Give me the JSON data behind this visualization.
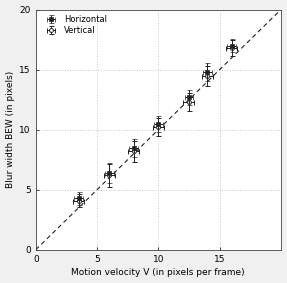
{
  "title": "",
  "xlabel": "Motion velocity V (in pixels per frame)",
  "ylabel": "Blur width BEW (in pixels)",
  "xlim": [
    0,
    20
  ],
  "ylim": [
    0,
    20
  ],
  "xticks": [
    0,
    5,
    10,
    15
  ],
  "yticks": [
    0,
    5,
    10,
    15,
    20
  ],
  "dashed_line": {
    "x": [
      0,
      20
    ],
    "y": [
      0,
      20
    ]
  },
  "horizontal": {
    "x": [
      3.5,
      6.0,
      8.0,
      10.0,
      12.5,
      14.0,
      16.0
    ],
    "y": [
      4.3,
      6.4,
      8.5,
      10.5,
      12.7,
      14.8,
      17.0
    ],
    "xerr": [
      0.35,
      0.35,
      0.35,
      0.35,
      0.35,
      0.35,
      0.35
    ],
    "yerr": [
      0.55,
      0.85,
      0.75,
      0.65,
      0.65,
      0.75,
      0.55
    ],
    "marker": "s",
    "label": "Horizontal"
  },
  "vertical": {
    "x": [
      3.5,
      6.0,
      8.0,
      10.0,
      12.5,
      14.0,
      16.0
    ],
    "y": [
      4.1,
      6.2,
      8.2,
      10.2,
      12.3,
      14.5,
      16.8
    ],
    "xerr": [
      0.45,
      0.45,
      0.45,
      0.45,
      0.45,
      0.45,
      0.45
    ],
    "yerr": [
      0.55,
      0.95,
      0.85,
      0.75,
      0.75,
      0.85,
      0.65
    ],
    "marker": "o",
    "label": "Vertical"
  },
  "grid_color": "#c8c8c8",
  "data_color": "#222222",
  "bg_color": "#f0f0f0",
  "plot_bg_color": "#ffffff",
  "fontsize": 6.5,
  "legend_fontsize": 6.0,
  "tick_fontsize": 6.5
}
